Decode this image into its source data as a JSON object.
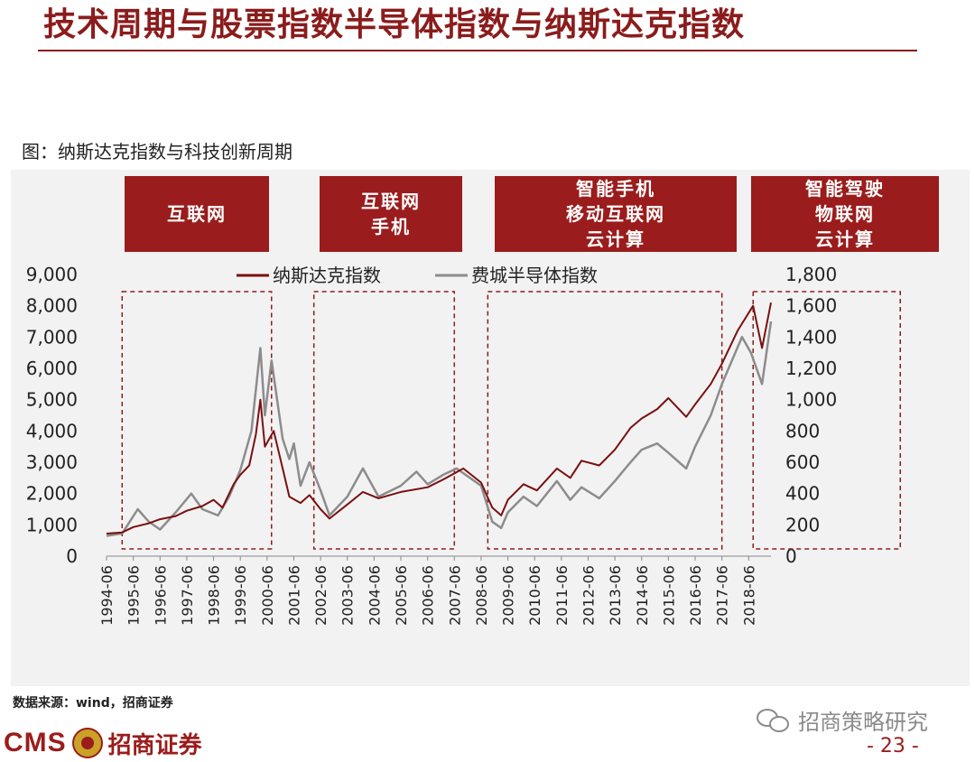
{
  "page": {
    "title": "技术周期与股票指数半导体指数与纳斯达克指数",
    "figure_caption": "图：纳斯达克指数与科技创新周期",
    "source_note": "数据来源：wind，招商证券",
    "logo_cms": "CMS",
    "logo_name": "招商证券",
    "watermark": "招商策略研究",
    "page_number": "- 23 -"
  },
  "colors": {
    "accent": "#9b1c1c",
    "nasdaq": "#7a1010",
    "sox": "#8c8c8c",
    "dashed_box": "#8b1c1c",
    "panel_bg": "#f2f2f2"
  },
  "eras": [
    {
      "lines": [
        "互联网"
      ]
    },
    {
      "lines": [
        "互联网",
        "手机"
      ]
    },
    {
      "lines": [
        "智能手机",
        "移动互联网",
        "云计算"
      ]
    },
    {
      "lines": [
        "智能驾驶",
        "物联网",
        "云计算"
      ]
    }
  ],
  "chart_data": {
    "type": "line",
    "title": "",
    "xlabel": "",
    "ylabel": "",
    "y_left": {
      "min": 0,
      "max": 9000,
      "ticks": [
        "0",
        "1,000",
        "2,000",
        "3,000",
        "4,000",
        "5,000",
        "6,000",
        "7,000",
        "8,000",
        "9,000"
      ]
    },
    "y_right": {
      "min": 0,
      "max": 1800,
      "ticks": [
        "0",
        "200",
        "400",
        "600",
        "800",
        "1,000",
        "1,200",
        "1,400",
        "1,600",
        "1,800"
      ]
    },
    "x_tick_labels": [
      "1994-06",
      "1995-06",
      "1996-06",
      "1997-06",
      "1998-06",
      "1999-06",
      "2000-06",
      "2001-06",
      "2002-06",
      "2003-06",
      "2004-06",
      "2005-06",
      "2006-06",
      "2007-06",
      "2008-06",
      "2009-06",
      "2010-06",
      "2011-06",
      "2012-06",
      "2013-06",
      "2014-06",
      "2015-06",
      "2016-06",
      "2017-06",
      "2018-06"
    ],
    "x_range": [
      "1994-06",
      "2019-04"
    ],
    "grid": false,
    "legend_position": "top-center",
    "series": [
      {
        "name": "纳斯达克指数",
        "axis": "left",
        "x": [
          "1994-06",
          "1995-01",
          "1995-06",
          "1996-01",
          "1996-06",
          "1997-01",
          "1997-06",
          "1998-01",
          "1998-06",
          "1998-10",
          "1999-03",
          "1999-06",
          "1999-10",
          "2000-01",
          "2000-03",
          "2000-05",
          "2000-09",
          "2001-01",
          "2001-04",
          "2001-09",
          "2002-01",
          "2002-06",
          "2002-10",
          "2003-06",
          "2004-01",
          "2004-08",
          "2005-06",
          "2006-06",
          "2007-01",
          "2007-10",
          "2008-06",
          "2008-11",
          "2009-03",
          "2009-06",
          "2010-01",
          "2010-07",
          "2011-04",
          "2011-10",
          "2012-03",
          "2012-11",
          "2013-06",
          "2014-01",
          "2014-06",
          "2015-01",
          "2015-06",
          "2016-02",
          "2016-06",
          "2017-01",
          "2017-06",
          "2018-01",
          "2018-08",
          "2018-12",
          "2019-04"
        ],
        "values": [
          720,
          760,
          930,
          1050,
          1180,
          1280,
          1450,
          1600,
          1800,
          1550,
          2300,
          2600,
          2900,
          3900,
          5000,
          3500,
          4000,
          2800,
          1900,
          1700,
          1950,
          1500,
          1200,
          1650,
          2050,
          1850,
          2050,
          2200,
          2450,
          2800,
          2350,
          1550,
          1300,
          1800,
          2300,
          2100,
          2800,
          2500,
          3050,
          2900,
          3400,
          4100,
          4400,
          4700,
          5050,
          4450,
          4850,
          5500,
          6150,
          7200,
          8000,
          6650,
          8100
        ]
      },
      {
        "name": "费城半导体指数",
        "axis": "right",
        "x": [
          "1994-06",
          "1995-01",
          "1995-08",
          "1996-01",
          "1996-06",
          "1997-01",
          "1997-08",
          "1998-01",
          "1998-08",
          "1999-01",
          "1999-06",
          "1999-11",
          "2000-03",
          "2000-05",
          "2000-08",
          "2001-01",
          "2001-04",
          "2001-06",
          "2001-09",
          "2002-01",
          "2002-06",
          "2002-10",
          "2003-06",
          "2004-01",
          "2004-08",
          "2005-06",
          "2006-01",
          "2006-06",
          "2007-01",
          "2007-07",
          "2008-06",
          "2008-11",
          "2009-03",
          "2009-06",
          "2010-01",
          "2010-07",
          "2011-04",
          "2011-10",
          "2012-03",
          "2012-11",
          "2013-06",
          "2014-01",
          "2014-06",
          "2015-01",
          "2015-06",
          "2016-02",
          "2016-06",
          "2017-01",
          "2017-06",
          "2018-03",
          "2018-07",
          "2018-12",
          "2019-04"
        ],
        "values": [
          130,
          145,
          300,
          220,
          170,
          280,
          400,
          300,
          260,
          380,
          550,
          800,
          1330,
          900,
          1250,
          750,
          620,
          720,
          450,
          600,
          420,
          260,
          380,
          560,
          380,
          450,
          540,
          460,
          520,
          560,
          450,
          220,
          180,
          280,
          380,
          320,
          480,
          360,
          440,
          370,
          480,
          600,
          680,
          720,
          660,
          560,
          700,
          900,
          1100,
          1400,
          1300,
          1100,
          1500
        ]
      }
    ],
    "annotation_boxes": [
      {
        "from": "1995-01",
        "to": "2000-08"
      },
      {
        "from": "2002-03",
        "to": "2007-06"
      },
      {
        "from": "2008-09",
        "to": "2017-06"
      },
      {
        "from": "2018-08",
        "to": "2024-02"
      }
    ]
  }
}
